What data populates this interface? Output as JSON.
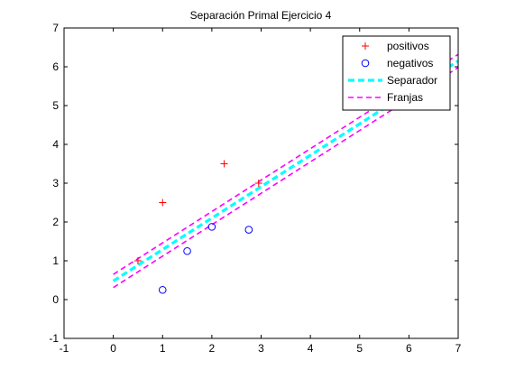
{
  "chart_data": {
    "type": "scatter",
    "title": "Separación Primal Ejercicio 4",
    "xlabel": "",
    "ylabel": "",
    "xlim": [
      -1,
      7
    ],
    "ylim": [
      -1,
      7
    ],
    "xticks": [
      "-1",
      "0",
      "1",
      "2",
      "3",
      "4",
      "5",
      "6",
      "7"
    ],
    "yticks": [
      "-1",
      "0",
      "1",
      "2",
      "3",
      "4",
      "5",
      "6",
      "7"
    ],
    "grid": false,
    "legend_position": "top-right",
    "series": [
      {
        "name": "positivos",
        "kind": "points",
        "marker": "plus",
        "color": "#ff0000",
        "points": [
          [
            0.5,
            1.0
          ],
          [
            1.0,
            2.5
          ],
          [
            2.25,
            3.5
          ],
          [
            2.95,
            3.0
          ]
        ]
      },
      {
        "name": "negativos",
        "kind": "points",
        "marker": "circle",
        "color": "#0000ff",
        "points": [
          [
            1.0,
            0.25
          ],
          [
            1.5,
            1.25
          ],
          [
            2.0,
            1.875
          ],
          [
            2.75,
            1.8
          ]
        ]
      },
      {
        "name": "Separador",
        "kind": "line",
        "dash": "thick-dashed",
        "color": "#00ffff",
        "points": [
          [
            0.0,
            0.48
          ],
          [
            7.0,
            6.15
          ]
        ]
      },
      {
        "name": "Franjas",
        "kind": "line",
        "dash": "dashed",
        "color": "#ff00ff",
        "points": [
          [
            0.0,
            0.65
          ],
          [
            7.0,
            6.32
          ]
        ]
      },
      {
        "name": "Franjas",
        "kind": "line",
        "dash": "dashed",
        "color": "#ff00ff",
        "points": [
          [
            0.0,
            0.31
          ],
          [
            7.0,
            5.98
          ]
        ]
      }
    ],
    "legend": [
      {
        "label": "positivos",
        "marker": "plus",
        "color": "#ff0000"
      },
      {
        "label": "negativos",
        "marker": "circle",
        "color": "#0000ff"
      },
      {
        "label": "Separador",
        "marker": "thick-dashed",
        "color": "#00ffff"
      },
      {
        "label": "Franjas",
        "marker": "dashed",
        "color": "#ff00ff"
      }
    ]
  }
}
